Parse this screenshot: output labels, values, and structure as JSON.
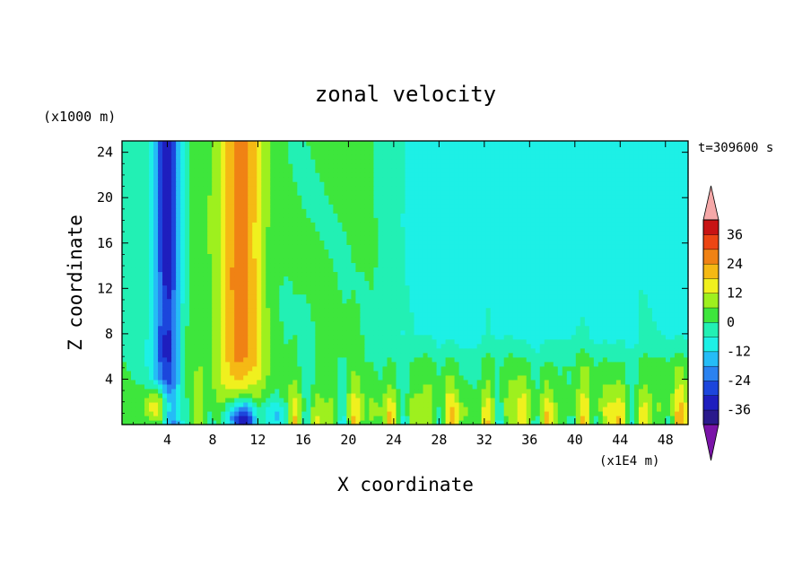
{
  "chart_data": {
    "type": "heatmap",
    "title": "zonal velocity",
    "xlabel": "X coordinate",
    "ylabel": "Z coordinate",
    "x_unit": "(x1E4 m)",
    "y_unit": "(x1000 m)",
    "time_label": "t=309600 s",
    "xlim": [
      0,
      50
    ],
    "ylim": [
      0,
      25
    ],
    "x_ticks": [
      "4",
      "8",
      "12",
      "16",
      "20",
      "24",
      "28",
      "32",
      "36",
      "40",
      "44",
      "48"
    ],
    "x_tick_values": [
      4,
      8,
      12,
      16,
      20,
      24,
      28,
      32,
      36,
      40,
      44,
      48
    ],
    "y_ticks": [
      "4",
      "8",
      "12",
      "16",
      "20",
      "24"
    ],
    "y_tick_values": [
      4,
      8,
      12,
      16,
      20,
      24
    ],
    "colorbar_labels": [
      "36",
      "24",
      "12",
      "0",
      "-12",
      "-24",
      "-36"
    ],
    "colorbar_label_values": [
      36,
      24,
      12,
      0,
      -12,
      -24,
      -36
    ],
    "levels": [
      -42,
      -36,
      -30,
      -24,
      -18,
      -12,
      -6,
      0,
      6,
      12,
      18,
      24,
      30,
      36,
      42
    ],
    "colors": [
      "#7a14a8",
      "#2a1a8c",
      "#1e1ebe",
      "#1c46dc",
      "#2a82f0",
      "#25bcf6",
      "#1df0e6",
      "#22f0b4",
      "#3ee63c",
      "#9ef01e",
      "#f0f01e",
      "#f5b914",
      "#f08214",
      "#ec4614",
      "#c81414",
      "#f5a8a8"
    ]
  }
}
